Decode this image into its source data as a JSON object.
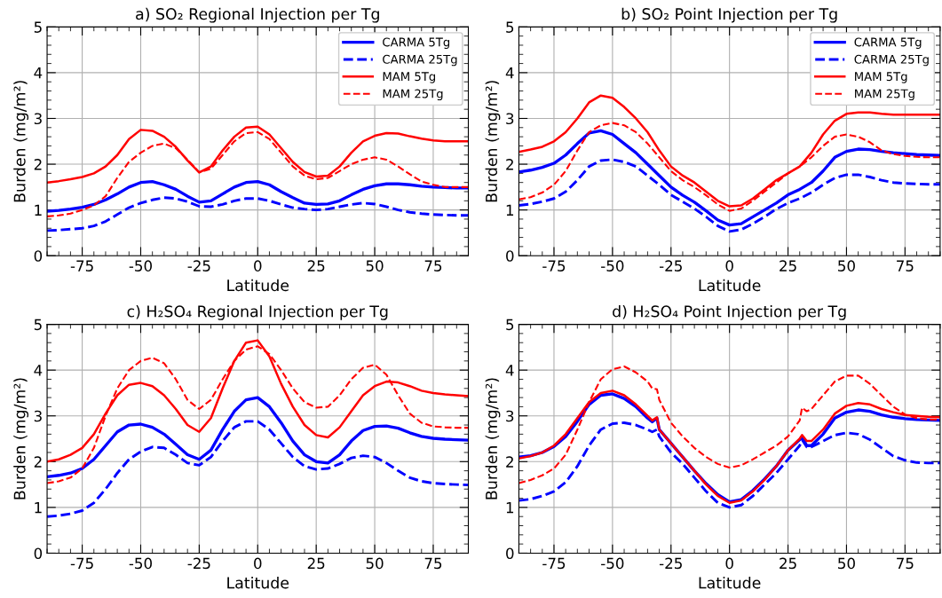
{
  "chart_data": [
    {
      "type": "line",
      "title": "a) SO₂ Regional Injection per Tg",
      "xlabel": "Latitude",
      "ylabel": "Burden (mg/m²)",
      "xlim": [
        -90,
        90
      ],
      "xticks": [
        -75,
        -50,
        -25,
        0,
        25,
        50,
        75
      ],
      "ylim": [
        0,
        5
      ],
      "yticks": [
        0,
        1,
        2,
        3,
        4,
        5
      ],
      "grid": true,
      "legend": "top right",
      "marker": "none",
      "x": [
        -90,
        -85,
        -80,
        -75,
        -70,
        -65,
        -60,
        -55,
        -50,
        -45,
        -40,
        -35,
        -30,
        -25,
        -20,
        -15,
        -10,
        -5,
        0,
        5,
        10,
        15,
        20,
        25,
        30,
        35,
        40,
        45,
        50,
        55,
        60,
        65,
        70,
        75,
        80,
        85,
        90
      ],
      "series": [
        {
          "name": "CARMA 5Tg",
          "color": "#0000ff",
          "line_style": "solid",
          "values": [
            0.97,
            0.99,
            1.02,
            1.06,
            1.12,
            1.22,
            1.35,
            1.5,
            1.6,
            1.62,
            1.55,
            1.45,
            1.3,
            1.17,
            1.2,
            1.35,
            1.5,
            1.6,
            1.62,
            1.55,
            1.4,
            1.27,
            1.15,
            1.12,
            1.13,
            1.2,
            1.33,
            1.45,
            1.53,
            1.57,
            1.57,
            1.55,
            1.52,
            1.5,
            1.49,
            1.48,
            1.48
          ]
        },
        {
          "name": "CARMA 25Tg",
          "color": "#0000ff",
          "line_style": "dashed",
          "values": [
            0.55,
            0.56,
            0.58,
            0.6,
            0.65,
            0.75,
            0.9,
            1.05,
            1.15,
            1.22,
            1.27,
            1.25,
            1.18,
            1.08,
            1.07,
            1.12,
            1.2,
            1.25,
            1.25,
            1.2,
            1.12,
            1.05,
            1.02,
            1.0,
            1.02,
            1.07,
            1.12,
            1.15,
            1.13,
            1.07,
            1.0,
            0.95,
            0.92,
            0.9,
            0.89,
            0.88,
            0.88
          ]
        },
        {
          "name": "MAM 5Tg",
          "color": "#ff0000",
          "line_style": "solid",
          "values": [
            1.6,
            1.63,
            1.67,
            1.72,
            1.8,
            1.95,
            2.2,
            2.55,
            2.75,
            2.73,
            2.6,
            2.38,
            2.08,
            1.82,
            1.95,
            2.3,
            2.6,
            2.8,
            2.82,
            2.65,
            2.35,
            2.05,
            1.83,
            1.73,
            1.75,
            1.95,
            2.25,
            2.5,
            2.62,
            2.68,
            2.67,
            2.61,
            2.56,
            2.52,
            2.5,
            2.5,
            2.5
          ]
        },
        {
          "name": "MAM 25Tg",
          "color": "#ff0000",
          "line_style": "dashed",
          "values": [
            0.86,
            0.88,
            0.92,
            1.0,
            1.1,
            1.3,
            1.7,
            2.05,
            2.25,
            2.4,
            2.45,
            2.35,
            2.1,
            1.82,
            1.9,
            2.2,
            2.5,
            2.68,
            2.7,
            2.55,
            2.25,
            1.95,
            1.75,
            1.67,
            1.7,
            1.85,
            2.0,
            2.1,
            2.15,
            2.1,
            1.95,
            1.78,
            1.62,
            1.55,
            1.5,
            1.5,
            1.5
          ]
        }
      ]
    },
    {
      "type": "line",
      "title": "b) SO₂ Point Injection per Tg",
      "xlabel": "Latitude",
      "ylabel": "Burden (mg/m²)",
      "xlim": [
        -90,
        90
      ],
      "xticks": [
        -75,
        -50,
        -25,
        0,
        25,
        50,
        75
      ],
      "ylim": [
        0,
        5
      ],
      "yticks": [
        0,
        1,
        2,
        3,
        4,
        5
      ],
      "grid": true,
      "legend": "top right",
      "marker": "none",
      "x": [
        -90,
        -85,
        -80,
        -75,
        -70,
        -65,
        -60,
        -55,
        -50,
        -45,
        -40,
        -35,
        -30,
        -25,
        -20,
        -15,
        -10,
        -5,
        0,
        5,
        10,
        15,
        20,
        25,
        30,
        35,
        40,
        45,
        50,
        55,
        60,
        65,
        70,
        75,
        80,
        85,
        90
      ],
      "series": [
        {
          "name": "CARMA 5Tg",
          "color": "#0000ff",
          "line_style": "solid",
          "values": [
            1.83,
            1.87,
            1.93,
            2.02,
            2.2,
            2.45,
            2.68,
            2.73,
            2.65,
            2.45,
            2.25,
            2.0,
            1.75,
            1.5,
            1.32,
            1.17,
            0.98,
            0.78,
            0.67,
            0.7,
            0.85,
            1.0,
            1.15,
            1.33,
            1.45,
            1.6,
            1.85,
            2.15,
            2.28,
            2.33,
            2.32,
            2.28,
            2.25,
            2.23,
            2.21,
            2.2,
            2.19
          ]
        },
        {
          "name": "CARMA 25Tg",
          "color": "#0000ff",
          "line_style": "dashed",
          "values": [
            1.1,
            1.13,
            1.18,
            1.25,
            1.4,
            1.65,
            1.95,
            2.08,
            2.1,
            2.05,
            1.95,
            1.75,
            1.55,
            1.33,
            1.18,
            1.03,
            0.85,
            0.65,
            0.53,
            0.57,
            0.7,
            0.85,
            1.02,
            1.15,
            1.25,
            1.38,
            1.55,
            1.7,
            1.77,
            1.77,
            1.72,
            1.65,
            1.6,
            1.58,
            1.57,
            1.56,
            1.56
          ]
        },
        {
          "name": "MAM 5Tg",
          "color": "#ff0000",
          "line_style": "solid",
          "values": [
            2.27,
            2.32,
            2.38,
            2.5,
            2.7,
            3.0,
            3.35,
            3.5,
            3.45,
            3.25,
            3.0,
            2.7,
            2.3,
            1.95,
            1.75,
            1.6,
            1.4,
            1.2,
            1.08,
            1.1,
            1.25,
            1.45,
            1.65,
            1.8,
            1.95,
            2.25,
            2.65,
            2.95,
            3.1,
            3.13,
            3.13,
            3.1,
            3.08,
            3.08,
            3.08,
            3.08,
            3.08
          ]
        },
        {
          "name": "MAM 25Tg",
          "color": "#ff0000",
          "line_style": "dashed",
          "values": [
            1.23,
            1.28,
            1.38,
            1.55,
            1.85,
            2.3,
            2.7,
            2.85,
            2.9,
            2.85,
            2.7,
            2.45,
            2.15,
            1.85,
            1.65,
            1.5,
            1.32,
            1.12,
            0.98,
            1.03,
            1.2,
            1.4,
            1.6,
            1.8,
            1.95,
            2.15,
            2.4,
            2.6,
            2.65,
            2.6,
            2.48,
            2.3,
            2.22,
            2.18,
            2.16,
            2.15,
            2.15
          ]
        }
      ]
    },
    {
      "type": "line",
      "title": "c) H₂SO₄ Regional Injection per Tg",
      "xlabel": "Latitude",
      "ylabel": "Burden (mg/m²)",
      "xlim": [
        -90,
        90
      ],
      "xticks": [
        -75,
        -50,
        -25,
        0,
        25,
        50,
        75
      ],
      "ylim": [
        0,
        5
      ],
      "yticks": [
        0,
        1,
        2,
        3,
        4,
        5
      ],
      "grid": true,
      "marker": "none",
      "x": [
        -90,
        -85,
        -80,
        -75,
        -70,
        -65,
        -60,
        -55,
        -50,
        -45,
        -40,
        -35,
        -30,
        -25,
        -20,
        -15,
        -10,
        -5,
        0,
        5,
        10,
        15,
        20,
        25,
        30,
        35,
        40,
        45,
        50,
        55,
        60,
        65,
        70,
        75,
        80,
        85,
        90
      ],
      "series": [
        {
          "color": "#0000ff",
          "line_style": "solid",
          "values": [
            1.67,
            1.7,
            1.75,
            1.85,
            2.05,
            2.35,
            2.65,
            2.8,
            2.82,
            2.75,
            2.6,
            2.38,
            2.15,
            2.05,
            2.25,
            2.7,
            3.1,
            3.35,
            3.4,
            3.2,
            2.85,
            2.45,
            2.15,
            2.0,
            1.97,
            2.15,
            2.45,
            2.68,
            2.77,
            2.78,
            2.73,
            2.63,
            2.55,
            2.51,
            2.49,
            2.48,
            2.47
          ]
        },
        {
          "color": "#0000ff",
          "line_style": "dashed",
          "values": [
            0.8,
            0.82,
            0.86,
            0.93,
            1.1,
            1.4,
            1.75,
            2.05,
            2.22,
            2.32,
            2.3,
            2.15,
            1.97,
            1.92,
            2.1,
            2.45,
            2.75,
            2.88,
            2.88,
            2.7,
            2.4,
            2.1,
            1.9,
            1.83,
            1.85,
            1.95,
            2.08,
            2.13,
            2.1,
            1.97,
            1.8,
            1.65,
            1.57,
            1.53,
            1.51,
            1.5,
            1.49
          ]
        },
        {
          "color": "#ff0000",
          "line_style": "solid",
          "values": [
            2.0,
            2.05,
            2.15,
            2.3,
            2.6,
            3.05,
            3.45,
            3.68,
            3.72,
            3.65,
            3.45,
            3.15,
            2.8,
            2.65,
            2.95,
            3.6,
            4.2,
            4.6,
            4.65,
            4.3,
            3.7,
            3.2,
            2.8,
            2.58,
            2.53,
            2.75,
            3.1,
            3.45,
            3.65,
            3.75,
            3.73,
            3.65,
            3.55,
            3.5,
            3.47,
            3.45,
            3.43
          ]
        },
        {
          "color": "#ff0000",
          "line_style": "dashed",
          "values": [
            1.53,
            1.57,
            1.65,
            1.85,
            2.3,
            3.0,
            3.6,
            4.0,
            4.2,
            4.27,
            4.15,
            3.8,
            3.35,
            3.15,
            3.35,
            3.8,
            4.2,
            4.45,
            4.52,
            4.35,
            4.0,
            3.6,
            3.3,
            3.18,
            3.2,
            3.45,
            3.8,
            4.05,
            4.12,
            3.9,
            3.45,
            3.05,
            2.85,
            2.77,
            2.75,
            2.74,
            2.74
          ]
        }
      ]
    },
    {
      "type": "line",
      "title": "d) H₂SO₄ Point Injection per Tg",
      "xlabel": "Latitude",
      "ylabel": "Burden (mg/m²)",
      "xlim": [
        -90,
        90
      ],
      "xticks": [
        -75,
        -50,
        -25,
        0,
        25,
        50,
        75
      ],
      "ylim": [
        0,
        5
      ],
      "yticks": [
        0,
        1,
        2,
        3,
        4,
        5
      ],
      "grid": true,
      "marker": "none",
      "x": [
        -90,
        -85,
        -80,
        -75,
        -70,
        -65,
        -60,
        -55,
        -50,
        -45,
        -40,
        -35,
        -33,
        -31,
        -30,
        -25,
        -20,
        -15,
        -10,
        -5,
        0,
        5,
        10,
        15,
        20,
        25,
        30,
        31,
        33,
        35,
        40,
        45,
        50,
        55,
        60,
        65,
        70,
        75,
        80,
        85,
        90
      ],
      "series": [
        {
          "color": "#0000ff",
          "line_style": "solid",
          "values": [
            2.1,
            2.13,
            2.2,
            2.33,
            2.55,
            2.88,
            3.25,
            3.45,
            3.48,
            3.38,
            3.2,
            2.95,
            2.87,
            2.95,
            2.7,
            2.4,
            2.1,
            1.8,
            1.52,
            1.28,
            1.12,
            1.17,
            1.37,
            1.62,
            1.9,
            2.25,
            2.48,
            2.55,
            2.35,
            2.35,
            2.6,
            2.95,
            3.08,
            3.13,
            3.1,
            3.02,
            2.97,
            2.94,
            2.92,
            2.91,
            2.9
          ]
        },
        {
          "color": "#0000ff",
          "line_style": "dashed",
          "values": [
            1.15,
            1.18,
            1.25,
            1.35,
            1.55,
            1.9,
            2.35,
            2.7,
            2.83,
            2.85,
            2.8,
            2.7,
            2.65,
            2.7,
            2.55,
            2.2,
            1.95,
            1.65,
            1.35,
            1.1,
            1.0,
            1.05,
            1.25,
            1.5,
            1.75,
            2.05,
            2.35,
            2.48,
            2.32,
            2.32,
            2.45,
            2.58,
            2.63,
            2.6,
            2.48,
            2.3,
            2.12,
            2.03,
            1.98,
            1.97,
            1.97
          ]
        },
        {
          "color": "#ff0000",
          "line_style": "solid",
          "values": [
            2.07,
            2.12,
            2.2,
            2.35,
            2.6,
            2.95,
            3.3,
            3.5,
            3.55,
            3.45,
            3.25,
            3.0,
            2.9,
            2.97,
            2.7,
            2.4,
            2.1,
            1.8,
            1.5,
            1.25,
            1.1,
            1.15,
            1.35,
            1.6,
            1.9,
            2.25,
            2.5,
            2.58,
            2.45,
            2.45,
            2.7,
            3.05,
            3.22,
            3.28,
            3.25,
            3.15,
            3.08,
            3.02,
            3.0,
            2.98,
            2.97
          ]
        },
        {
          "color": "#ff0000",
          "line_style": "dashed",
          "values": [
            1.53,
            1.6,
            1.7,
            1.85,
            2.15,
            2.7,
            3.3,
            3.8,
            4.02,
            4.08,
            3.95,
            3.75,
            3.6,
            3.58,
            3.35,
            2.85,
            2.55,
            2.3,
            2.1,
            1.95,
            1.87,
            1.92,
            2.05,
            2.2,
            2.35,
            2.55,
            2.9,
            3.18,
            3.1,
            3.15,
            3.45,
            3.75,
            3.88,
            3.88,
            3.7,
            3.45,
            3.2,
            3.03,
            2.95,
            2.92,
            2.92
          ]
        }
      ]
    }
  ]
}
